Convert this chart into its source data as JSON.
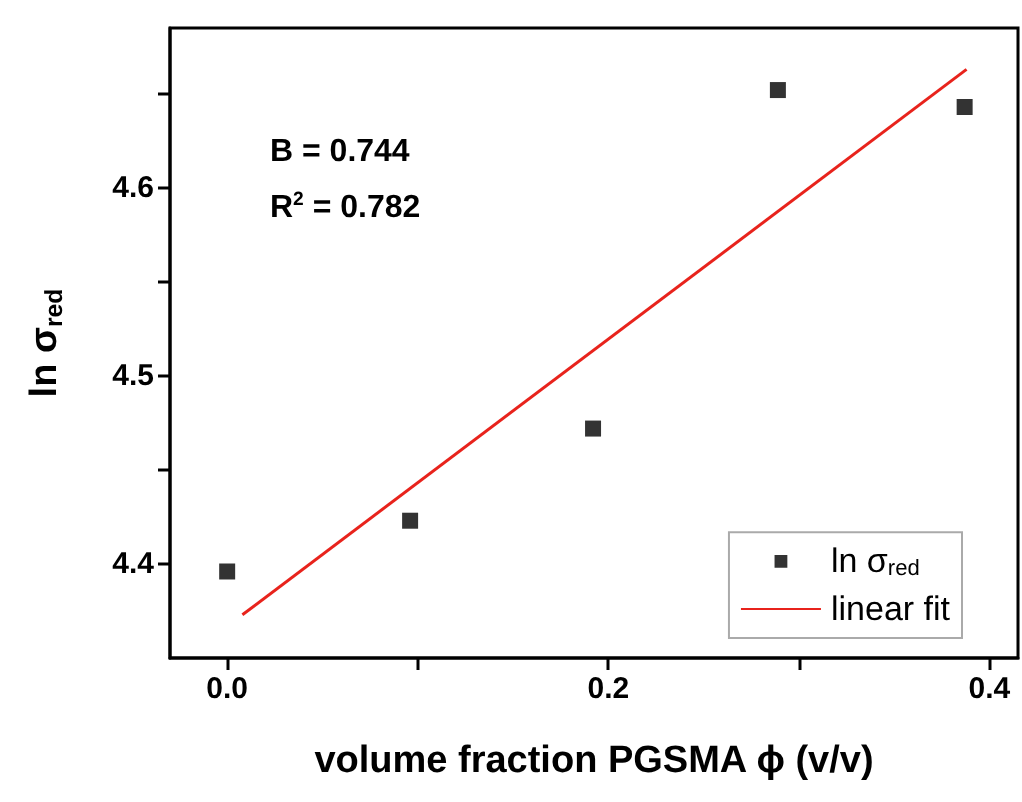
{
  "chart_data": {
    "type": "scatter",
    "xlabel": "volume fraction PGSMA ϕ (v/v)",
    "ylabel": "ln σ$_{red}$",
    "xlim": [
      -0.03,
      0.415
    ],
    "ylim": [
      4.35,
      4.685
    ],
    "xticks": [
      {
        "value": 0,
        "label": "0.0"
      },
      {
        "value": 0.1,
        "label": null
      },
      {
        "value": 0.2,
        "label": "0.2"
      },
      {
        "value": 0.3,
        "label": null
      },
      {
        "value": 0.4,
        "label": "0.4"
      }
    ],
    "yticks": [
      4.4,
      {
        "value": 4.45,
        "label": null
      },
      4.5,
      {
        "value": 4.55,
        "label": null
      },
      4.6,
      {
        "value": 4.65,
        "label": null
      }
    ],
    "series": [
      {
        "name": "ln σ$_{red}$",
        "marker": "square",
        "color": "#000000",
        "x": [
          0,
          0.096,
          0.192,
          0.289,
          0.387
        ],
        "values": [
          4.396,
          4.423,
          4.472,
          4.652,
          4.643
        ]
      },
      {
        "name": "linear fit",
        "type": "line",
        "marker": "none",
        "color": "#e8231c",
        "x": [
          0.008,
          0.388
        ],
        "values": [
          4.373,
          4.663
        ]
      }
    ],
    "annotations": [
      "B = 0.744",
      "R$^{2}$ = 0.782"
    ],
    "legend": "bottom right",
    "grid": false
  }
}
